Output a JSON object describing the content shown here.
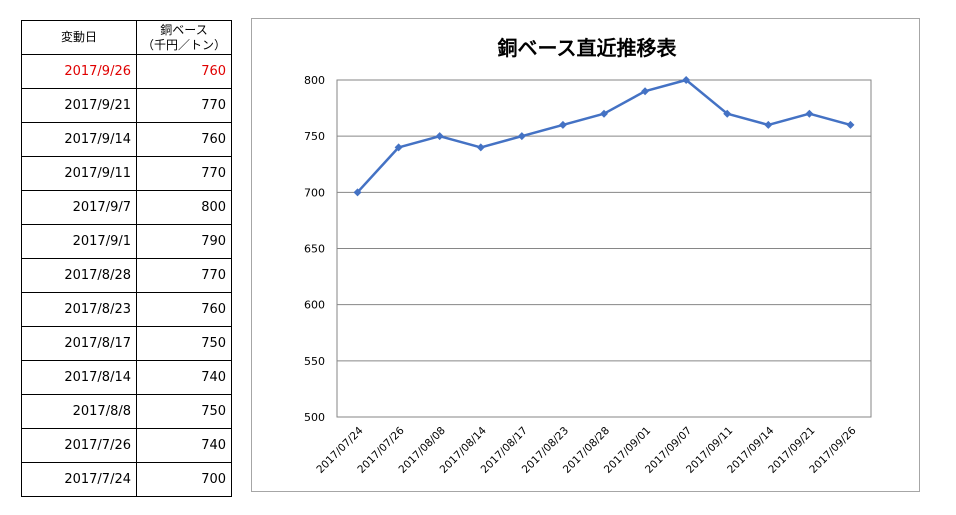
{
  "table": {
    "header": {
      "date_label": "変動日",
      "price_label_line1": "銅ベース",
      "price_label_line2": "（千円／トン）"
    },
    "rows": [
      {
        "date": "2017/9/26",
        "price": "760"
      },
      {
        "date": "2017/9/21",
        "price": "770"
      },
      {
        "date": "2017/9/14",
        "price": "760"
      },
      {
        "date": "2017/9/11",
        "price": "770"
      },
      {
        "date": "2017/9/7",
        "price": "800"
      },
      {
        "date": "2017/9/1",
        "price": "790"
      },
      {
        "date": "2017/8/28",
        "price": "770"
      },
      {
        "date": "2017/8/23",
        "price": "760"
      },
      {
        "date": "2017/8/17",
        "price": "750"
      },
      {
        "date": "2017/8/14",
        "price": "740"
      },
      {
        "date": "2017/8/8",
        "price": "750"
      },
      {
        "date": "2017/7/26",
        "price": "740"
      },
      {
        "date": "2017/7/24",
        "price": "700"
      }
    ],
    "highlight_color": "#e00000"
  },
  "chart_data": {
    "type": "line",
    "title": "銅ベース直近推移表",
    "categories": [
      "2017/07/24",
      "2017/07/26",
      "2017/08/08",
      "2017/08/14",
      "2017/08/17",
      "2017/08/23",
      "2017/08/28",
      "2017/09/01",
      "2017/09/07",
      "2017/09/11",
      "2017/09/14",
      "2017/09/21",
      "2017/09/26"
    ],
    "series": [
      {
        "values": [
          700,
          740,
          750,
          740,
          750,
          760,
          770,
          790,
          800,
          770,
          760,
          770,
          760
        ],
        "color": "#4472c4"
      }
    ],
    "ylim": [
      500,
      800
    ],
    "yticks": [
      500,
      550,
      600,
      650,
      700,
      750,
      800
    ],
    "grid": true,
    "legend": "none"
  }
}
